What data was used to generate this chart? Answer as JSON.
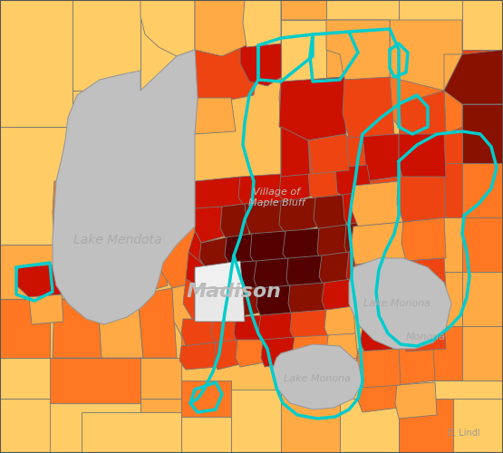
{
  "background_color": "#FFBE55",
  "border_color": "#777777",
  "highlight_color": "#00CCCC",
  "lake_color": "#C0C0C0",
  "city_label": "Madison",
  "city_label_color": "#BBBBBB",
  "city_label_size": 16,
  "village_label": "Village of\nMaple Bluff",
  "village_label_color": "#BBBBBB",
  "village_label_size": 8,
  "lake_mendota_label": "Lake Mendota",
  "lake_mendota_label_color": "#AAAAAA",
  "lake_monona_label": "Lake Monona",
  "lake_monona2_label": "Lake Monona",
  "monona_label": "Monona",
  "label_color": "#AAAAAA",
  "colors": {
    "yellow_orange": "#FFCC66",
    "light_orange": "#FFAA44",
    "orange": "#FF7722",
    "red_orange": "#EE4411",
    "red": "#CC1100",
    "dark_red": "#881100",
    "very_dark_red": "#550000"
  },
  "figure_width": 5.55,
  "figure_height": 5.0,
  "dpi": 100
}
